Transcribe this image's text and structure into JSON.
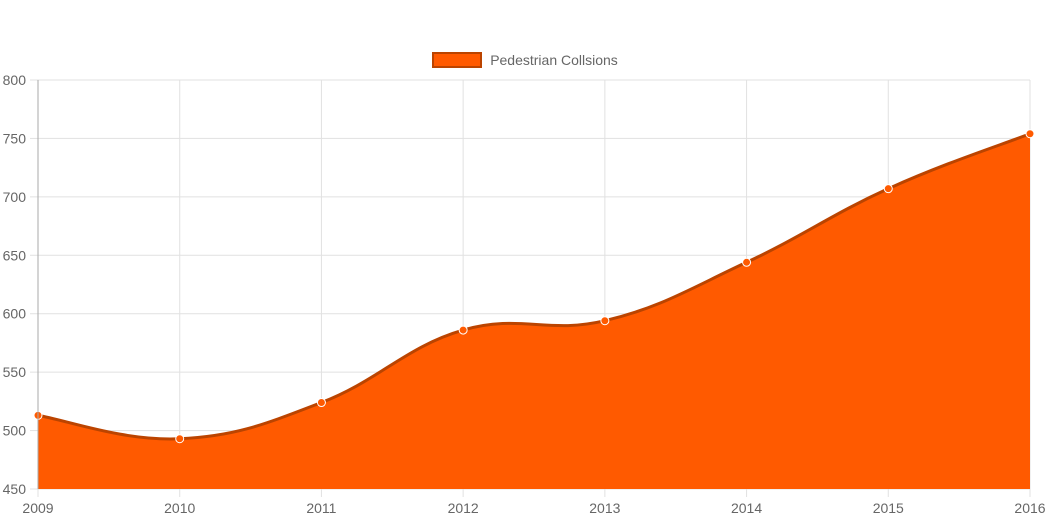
{
  "colors": {
    "fill": "#ff5a00",
    "line": "#bb4400",
    "grid": "#e1e1e1",
    "axis": "#aaaaaa",
    "tick_text": "#666666"
  },
  "chart_data": {
    "type": "area",
    "x": [
      "2009",
      "2010",
      "2011",
      "2012",
      "2013",
      "2014",
      "2015",
      "2016"
    ],
    "series": [
      {
        "name": "Pedestrian Collsions",
        "values": [
          513,
          493,
          524,
          586,
          594,
          644,
          707,
          754
        ]
      }
    ],
    "y_ticks": [
      "450",
      "500",
      "550",
      "600",
      "650",
      "700",
      "750",
      "800"
    ],
    "ylim": [
      450,
      800
    ],
    "grid": true,
    "legend": "top-center"
  }
}
